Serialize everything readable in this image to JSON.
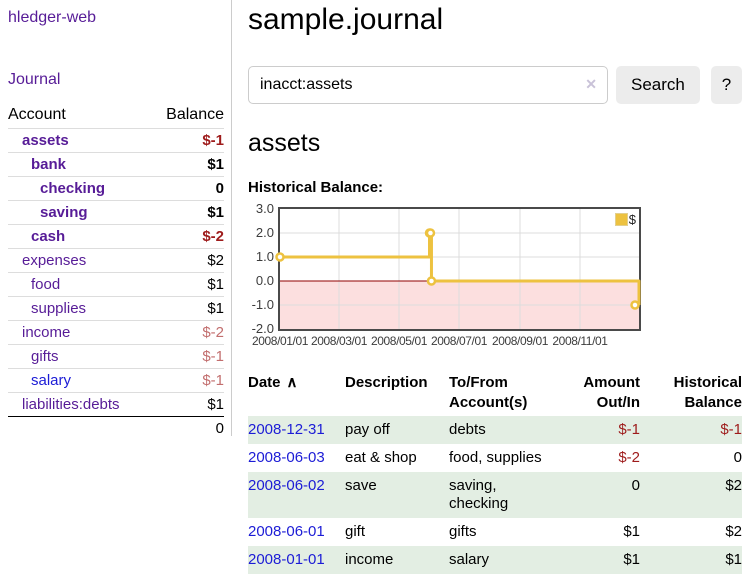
{
  "sidebar": {
    "app_title": "hledger-web",
    "nav_journal": "Journal",
    "accounts_table": {
      "account_header": "Account",
      "balance_header": "Balance",
      "rows": [
        {
          "name": "assets",
          "indent": 1,
          "balance": "$-1",
          "bold": true,
          "neg": "strong",
          "link": "purple"
        },
        {
          "name": "bank",
          "indent": 2,
          "balance": "$1",
          "bold": true,
          "neg": "none",
          "link": "purple"
        },
        {
          "name": "checking",
          "indent": 3,
          "balance": "0",
          "bold": true,
          "neg": "none",
          "link": "purple"
        },
        {
          "name": "saving",
          "indent": 3,
          "balance": "$1",
          "bold": true,
          "neg": "none",
          "link": "purple"
        },
        {
          "name": "cash",
          "indent": 2,
          "balance": "$-2",
          "bold": true,
          "neg": "strong",
          "link": "purple"
        },
        {
          "name": "expenses",
          "indent": 1,
          "balance": "$2",
          "bold": false,
          "neg": "none",
          "link": "purple"
        },
        {
          "name": "food",
          "indent": 2,
          "balance": "$1",
          "bold": false,
          "neg": "none",
          "link": "purple"
        },
        {
          "name": "supplies",
          "indent": 2,
          "balance": "$1",
          "bold": false,
          "neg": "none",
          "link": "purple"
        },
        {
          "name": "income",
          "indent": 1,
          "balance": "$-2",
          "bold": false,
          "neg": "soft",
          "link": "purple"
        },
        {
          "name": "gifts",
          "indent": 2,
          "balance": "$-1",
          "bold": false,
          "neg": "soft",
          "link": "purple"
        },
        {
          "name": "salary",
          "indent": 2,
          "balance": "$-1",
          "bold": false,
          "neg": "soft",
          "link": "blue"
        },
        {
          "name": "liabilities:debts",
          "indent": 1,
          "balance": "$1",
          "bold": false,
          "neg": "none",
          "link": "purple"
        }
      ],
      "total": "0"
    }
  },
  "header": {
    "title": "sample.journal"
  },
  "search": {
    "value": "inacct:assets",
    "clear_icon": "✕",
    "search_label": "Search",
    "help_label": "?"
  },
  "account_page": {
    "title": "assets",
    "chart_label": "Historical Balance:"
  },
  "chart_data": {
    "type": "line",
    "style": "step",
    "title": "Historical Balance",
    "legend": [
      {
        "name": "$",
        "color": "#edc240"
      }
    ],
    "series": [
      {
        "name": "$",
        "color": "#edc240",
        "points": [
          [
            "2008-01-01",
            1
          ],
          [
            "2008-06-01",
            2
          ],
          [
            "2008-06-02",
            2
          ],
          [
            "2008-06-03",
            0
          ],
          [
            "2008-12-31",
            -1
          ]
        ]
      }
    ],
    "x_start": "2008-01-01",
    "x_range_days": 365,
    "x_ticks": [
      "2008/01/01",
      "2008/03/01",
      "2008/05/01",
      "2008/07/01",
      "2008/09/01",
      "2008/11/01"
    ],
    "y_ticks": [
      "3.0",
      "2.0",
      "1.0",
      "0.0",
      "-1.0",
      "-2.0"
    ],
    "ylim": [
      -2,
      3
    ],
    "grid": true,
    "legend_position": "top-right",
    "negative_region_color": "#fcdfdf",
    "zero_line_color": "#900000"
  },
  "transactions": {
    "sort_icon": "∧",
    "columns": [
      "Date",
      "Description",
      "To/From Account(s)",
      "Amount Out/In",
      "Historical Balance"
    ],
    "rows": [
      {
        "date": "2008-12-31",
        "description": "pay off",
        "accounts": "debts",
        "amount": "$-1",
        "amount_neg": true,
        "balance": "$-1",
        "balance_neg": true,
        "shaded": true
      },
      {
        "date": "2008-06-03",
        "description": "eat & shop",
        "accounts": "food, supplies",
        "amount": "$-2",
        "amount_neg": true,
        "balance": "0",
        "balance_neg": false,
        "shaded": false
      },
      {
        "date": "2008-06-02",
        "description": "save",
        "accounts": "saving, checking",
        "amount": "0",
        "amount_neg": false,
        "balance": "$2",
        "balance_neg": false,
        "shaded": true
      },
      {
        "date": "2008-06-01",
        "description": "gift",
        "accounts": "gifts",
        "amount": "$1",
        "amount_neg": false,
        "balance": "$2",
        "balance_neg": false,
        "shaded": false
      },
      {
        "date": "2008-01-01",
        "description": "income",
        "accounts": "salary",
        "amount": "$1",
        "amount_neg": false,
        "balance": "$1",
        "balance_neg": false,
        "shaded": true
      }
    ]
  }
}
